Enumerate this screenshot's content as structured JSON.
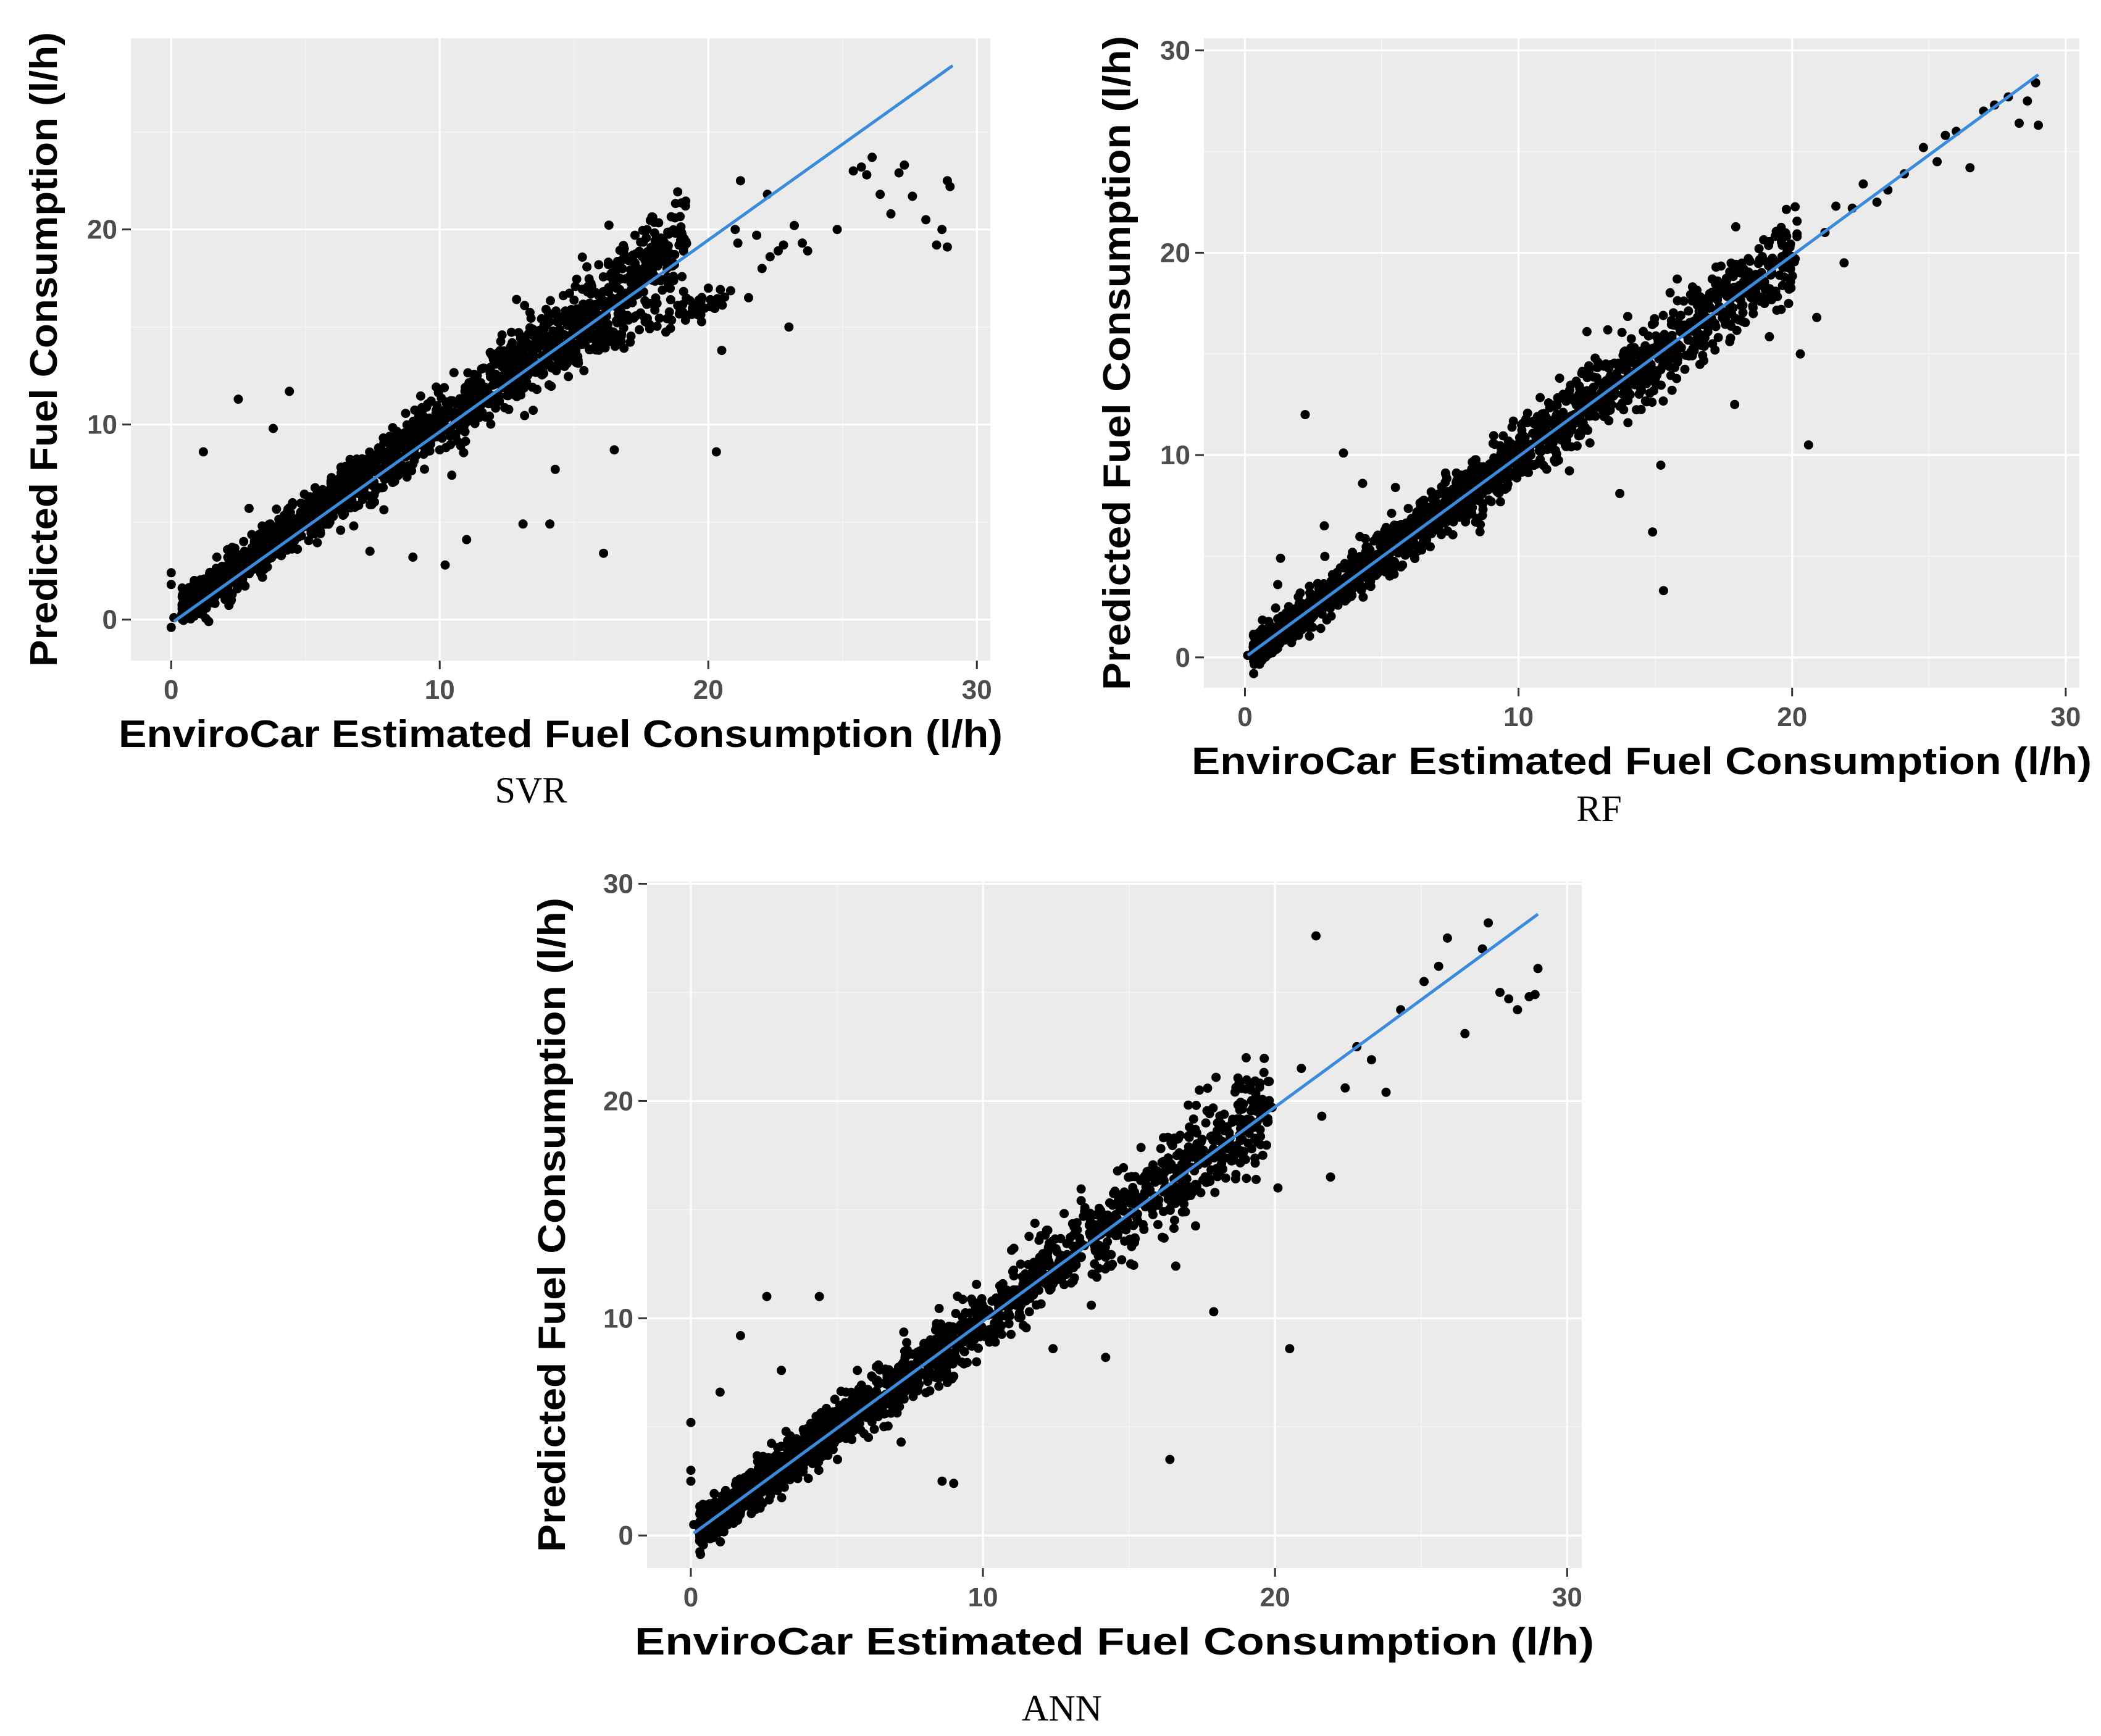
{
  "figure": {
    "point_color": "#000000",
    "line_color": "#3A8BDB",
    "panel_color": "#EBEBEB",
    "grid_color": "#FFFFFF"
  },
  "chart_data": [
    {
      "type": "scatter",
      "caption": "SVR",
      "xlabel": "EnviroCar Estimated Fuel Consumption (l/h)",
      "ylabel": "Predicted Fuel Consumption (l/h)",
      "xlim": [
        -1.5,
        30.5
      ],
      "ylim": [
        -2.1,
        29.8
      ],
      "xticks": [
        0,
        10,
        20,
        30
      ],
      "yticks": [
        0,
        10,
        20
      ],
      "fit_line": {
        "x": [
          0.1,
          29.1
        ],
        "y": [
          -0.1,
          28.4
        ]
      },
      "series": [
        {
          "name": "bulk",
          "model": "cloud",
          "n": 1700,
          "seed": 11,
          "spread": 0.75,
          "bias": 0.15,
          "xrange": [
            0.4,
            19.2
          ]
        },
        {
          "name": "lower-branch",
          "model": "branch",
          "n": 140,
          "seed": 12,
          "from": [
            12.5,
            12.2
          ],
          "to": [
            20.5,
            16.6
          ],
          "spread": 0.35
        },
        {
          "name": "outliers",
          "x": [
            0.0,
            0.0,
            0.0,
            0.1,
            0.6,
            1.0,
            1.2,
            1.4,
            1.7,
            2.5,
            4.4,
            3.8,
            3.4,
            2.9,
            6.8,
            7.4,
            9.0,
            10.2,
            11.0,
            13.1,
            14.1,
            14.3,
            16.1,
            16.5,
            19.8,
            20.3,
            20.5,
            21.1,
            21.2,
            21.5,
            21.8,
            22.0,
            22.3,
            22.6,
            22.8,
            23.0,
            23.2,
            23.5,
            23.7,
            24.8,
            25.4,
            25.7,
            25.9,
            26.1,
            26.4,
            26.8,
            27.1,
            27.3,
            27.6,
            28.1,
            28.5,
            28.7,
            28.9,
            28.9,
            29.0,
            21.0,
            22.2,
            19.4,
            18.6
          ],
          "y": [
            2.4,
            1.8,
            -0.4,
            0.1,
            0.3,
            1.5,
            8.6,
            -0.1,
            3.2,
            11.3,
            11.7,
            9.8,
            4.5,
            5.7,
            4.8,
            3.5,
            3.2,
            2.8,
            4.1,
            4.9,
            4.9,
            7.7,
            3.4,
            8.7,
            16.0,
            8.6,
            13.8,
            19.3,
            22.5,
            16.5,
            19.7,
            18.0,
            18.6,
            18.9,
            19.2,
            15.0,
            20.2,
            19.3,
            18.9,
            20.0,
            23.0,
            23.2,
            22.8,
            23.7,
            21.8,
            20.8,
            22.9,
            23.3,
            21.7,
            20.5,
            19.2,
            20.0,
            19.1,
            22.5,
            22.2,
            20.0,
            21.8,
            15.8,
            16.4
          ]
        }
      ]
    },
    {
      "type": "scatter",
      "caption": "RF",
      "xlabel": "EnviroCar Estimated Fuel Consumption (l/h)",
      "ylabel": "Predicted Fuel Consumption (l/h)",
      "xlim": [
        -1.5,
        30.5
      ],
      "ylim": [
        -1.5,
        30.6
      ],
      "xticks": [
        0,
        10,
        20,
        30
      ],
      "yticks": [
        0,
        10,
        20,
        30
      ],
      "fit_line": {
        "x": [
          0.1,
          29.0
        ],
        "y": [
          0.1,
          28.8
        ]
      },
      "series": [
        {
          "name": "bulk",
          "model": "cloud",
          "n": 1650,
          "seed": 21,
          "spread": 0.7,
          "bias": 0.0,
          "xrange": [
            0.3,
            20.2
          ]
        },
        {
          "name": "outliers",
          "x": [
            0.1,
            1.2,
            1.3,
            2.2,
            2.9,
            3.6,
            4.3,
            5.5,
            6.9,
            9.0,
            11.5,
            12.5,
            13.2,
            13.7,
            14.9,
            15.2,
            15.3,
            16.4,
            16.6,
            17.0,
            17.9,
            18.2,
            19.8,
            20.3,
            20.6,
            20.9,
            21.2,
            21.6,
            21.9,
            22.2,
            22.6,
            23.1,
            23.5,
            24.1,
            24.8,
            25.3,
            25.6,
            26.0,
            26.5,
            27.0,
            27.4,
            27.9,
            28.3,
            28.6,
            28.9,
            29.0,
            17.9,
            18.9,
            19.6,
            15.8,
            14.0
          ],
          "y": [
            0.1,
            3.6,
            4.9,
            12.0,
            6.5,
            10.1,
            8.6,
            8.4,
            6.3,
            7.7,
            13.8,
            16.1,
            12.1,
            8.1,
            6.2,
            9.5,
            3.3,
            16.4,
            17.1,
            17.3,
            12.5,
            17.4,
            20.0,
            15.0,
            10.5,
            16.8,
            21.0,
            22.3,
            19.5,
            22.2,
            23.4,
            22.5,
            23.1,
            23.9,
            25.2,
            24.5,
            25.8,
            26.0,
            24.2,
            27.0,
            27.3,
            27.7,
            26.4,
            27.5,
            28.4,
            26.3,
            19.0,
            17.8,
            17.2,
            18.7,
            11.6
          ]
        }
      ]
    },
    {
      "type": "scatter",
      "caption": "ANN",
      "xlabel": "EnviroCar Estimated Fuel Consumption (l/h)",
      "ylabel": "Predicted Fuel Consumption (l/h)",
      "xlim": [
        -1.5,
        30.5
      ],
      "ylim": [
        -1.5,
        30.1
      ],
      "xticks": [
        0,
        10,
        20,
        30
      ],
      "yticks": [
        0,
        10,
        20,
        30
      ],
      "fit_line": {
        "x": [
          0.1,
          29.0
        ],
        "y": [
          0.1,
          28.6
        ]
      },
      "series": [
        {
          "name": "bulk",
          "model": "cloud",
          "n": 1700,
          "seed": 31,
          "spread": 0.75,
          "bias": 0.0,
          "xrange": [
            0.3,
            19.8
          ]
        },
        {
          "name": "outliers",
          "x": [
            0.0,
            0.0,
            0.0,
            0.1,
            0.3,
            1.0,
            1.7,
            2.6,
            3.1,
            4.4,
            5.7,
            7.2,
            8.6,
            9.0,
            10.1,
            11.1,
            12.4,
            14.2,
            16.4,
            16.6,
            17.9,
            18.8,
            19.8,
            20.1,
            20.5,
            20.9,
            21.4,
            21.6,
            21.9,
            22.4,
            22.8,
            23.3,
            23.8,
            24.3,
            25.1,
            25.6,
            25.9,
            26.5,
            27.1,
            27.3,
            27.7,
            28.0,
            28.3,
            28.7,
            28.9,
            29.0,
            19.9,
            18.4
          ],
          "y": [
            5.2,
            3.0,
            2.5,
            0.5,
            0.3,
            6.6,
            9.2,
            11.0,
            7.6,
            11.0,
            7.6,
            4.3,
            2.5,
            2.4,
            9.3,
            11.2,
            8.6,
            8.2,
            3.5,
            12.4,
            10.3,
            19.0,
            20.9,
            16.0,
            8.6,
            21.5,
            27.6,
            19.3,
            16.5,
            20.6,
            22.5,
            21.9,
            20.4,
            24.2,
            25.5,
            26.2,
            27.5,
            23.1,
            27.0,
            28.2,
            25.0,
            24.7,
            24.2,
            24.8,
            24.9,
            26.1,
            19.7,
            17.8
          ]
        }
      ]
    }
  ]
}
